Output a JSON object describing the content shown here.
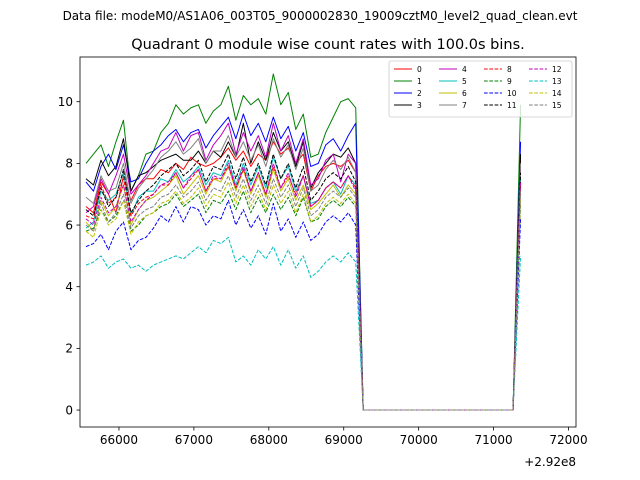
{
  "suptitle": "Data file: modeM0/AS1A06_003T05_9000002830_19009cztM0_level2_quad_clean.evt",
  "chart_data": {
    "type": "line",
    "title": "Quadrant 0 module wise count rates with 100.0s bins.",
    "offset_label": "+2.92e8",
    "xlim": [
      65480,
      72100
    ],
    "ylim": [
      -0.55,
      11.45
    ],
    "x_ticks": [
      66000,
      67000,
      68000,
      69000,
      70000,
      71000,
      72000
    ],
    "y_ticks": [
      0,
      2,
      4,
      6,
      8,
      10
    ],
    "x_start": 65560,
    "bin_width": 100,
    "gti": [
      [
        65560,
        69160
      ],
      [
        71360,
        71860
      ]
    ],
    "tail_x": 71900,
    "gap_edges": [
      69260,
      71260
    ],
    "legend_ncol": 4,
    "legend_location": "upper right",
    "series": [
      {
        "name": "0",
        "color": "#ff0000",
        "dash": "solid",
        "values": [
          6.6,
          6.4,
          7.4,
          7.0,
          6.4,
          7.6,
          6.8,
          7.3,
          7.5,
          7.5,
          7.8,
          7.7,
          8.0,
          7.8,
          8.2,
          8.0,
          7.9,
          8.0,
          8.2,
          8.5,
          8.1,
          8.4,
          7.9,
          8.3,
          8.1,
          8.7,
          8.3,
          8.5,
          8.0,
          8.3,
          7.1,
          7.6,
          7.9,
          8.0,
          7.9,
          8.1,
          7.7,
          8.2
        ],
        "tail": 1.0
      },
      {
        "name": "1",
        "color": "#008000",
        "dash": "solid",
        "values": [
          8.0,
          8.3,
          8.6,
          7.9,
          8.7,
          9.4,
          7.1,
          7.6,
          8.3,
          8.4,
          9.0,
          9.3,
          9.9,
          9.6,
          9.8,
          9.9,
          9.3,
          9.7,
          9.9,
          10.5,
          9.4,
          10.2,
          9.9,
          10.1,
          9.6,
          10.9,
          9.9,
          10.3,
          9.1,
          9.6,
          8.2,
          8.3,
          9.0,
          9.5,
          10.0,
          10.1,
          9.8,
          9.9
        ],
        "tail": 0.8
      },
      {
        "name": "2",
        "color": "#0000ff",
        "dash": "solid",
        "values": [
          7.4,
          7.1,
          7.9,
          8.3,
          7.8,
          8.6,
          7.4,
          7.5,
          8.0,
          8.4,
          8.6,
          8.9,
          9.1,
          8.7,
          9.0,
          9.1,
          8.5,
          8.9,
          9.2,
          9.5,
          8.8,
          9.6,
          8.9,
          9.3,
          8.7,
          9.5,
          8.8,
          9.2,
          8.4,
          9.0,
          7.9,
          8.0,
          8.6,
          8.8,
          8.4,
          8.9,
          9.3,
          8.7
        ],
        "tail": 1.0
      },
      {
        "name": "3",
        "color": "#000000",
        "dash": "solid",
        "values": [
          7.5,
          7.3,
          8.1,
          7.6,
          7.9,
          8.8,
          7.1,
          7.6,
          7.7,
          7.9,
          8.1,
          8.2,
          8.3,
          8.1,
          8.1,
          8.4,
          8.0,
          8.4,
          8.2,
          8.7,
          8.2,
          9.3,
          8.0,
          8.7,
          8.1,
          9.0,
          8.4,
          8.7,
          7.9,
          8.7,
          7.2,
          7.7,
          8.0,
          8.3,
          8.2,
          8.5,
          8.0,
          8.3
        ],
        "tail": 0.9
      },
      {
        "name": "4",
        "color": "#bf00bf",
        "dash": "solid",
        "values": [
          6.4,
          6.6,
          7.5,
          7.0,
          7.6,
          8.3,
          7.0,
          7.3,
          7.6,
          8.0,
          8.4,
          8.5,
          9.0,
          8.4,
          8.9,
          9.0,
          8.1,
          8.6,
          8.9,
          9.3,
          8.3,
          9.0,
          8.4,
          8.9,
          8.2,
          9.3,
          8.4,
          8.9,
          8.0,
          8.8,
          7.3,
          7.5,
          8.1,
          8.3,
          7.4,
          8.3,
          8.0,
          7.9
        ],
        "tail": 0.9
      },
      {
        "name": "5",
        "color": "#00bfbf",
        "dash": "solid",
        "values": [
          5.9,
          6.1,
          7.1,
          6.8,
          7.0,
          7.7,
          6.3,
          6.9,
          7.1,
          7.1,
          7.5,
          7.4,
          7.8,
          7.4,
          7.6,
          7.9,
          7.3,
          7.7,
          7.6,
          8.1,
          7.3,
          8.0,
          7.3,
          7.9,
          7.2,
          8.2,
          7.5,
          7.9,
          7.1,
          7.6,
          6.7,
          6.8,
          7.2,
          7.4,
          7.0,
          7.6,
          7.3,
          7.5
        ],
        "tail": 0.9
      },
      {
        "name": "6",
        "color": "#bfbf00",
        "dash": "solid",
        "values": [
          6.1,
          5.8,
          6.8,
          6.3,
          6.6,
          7.3,
          6.0,
          6.5,
          6.8,
          6.9,
          7.1,
          7.3,
          7.6,
          7.0,
          7.3,
          7.6,
          7.0,
          7.5,
          7.4,
          7.9,
          7.1,
          7.8,
          7.0,
          7.6,
          6.9,
          7.8,
          7.1,
          7.5,
          6.8,
          7.3,
          6.5,
          6.7,
          7.0,
          7.3,
          6.9,
          7.3,
          7.0,
          7.2
        ],
        "tail": 0.9
      },
      {
        "name": "7",
        "color": "#808080",
        "dash": "solid",
        "values": [
          6.9,
          6.7,
          7.6,
          7.1,
          7.2,
          8.0,
          6.7,
          7.2,
          7.5,
          7.8,
          8.2,
          8.4,
          8.7,
          8.3,
          8.5,
          8.8,
          8.0,
          8.4,
          8.4,
          8.9,
          8.2,
          8.7,
          8.1,
          8.6,
          7.9,
          8.8,
          8.2,
          8.6,
          7.8,
          8.5,
          7.1,
          7.3,
          7.8,
          8.1,
          7.8,
          8.2,
          7.7,
          8.0
        ],
        "tail": 0.9
      },
      {
        "name": "8",
        "color": "#ff0000",
        "dash": "dashed",
        "values": [
          6.3,
          6.2,
          7.3,
          6.7,
          6.9,
          7.5,
          6.3,
          6.7,
          6.9,
          7.0,
          7.3,
          7.3,
          7.7,
          7.2,
          7.5,
          7.8,
          7.1,
          7.5,
          7.5,
          7.9,
          7.2,
          7.8,
          7.1,
          7.7,
          7.0,
          7.9,
          7.2,
          7.6,
          7.0,
          7.6,
          6.6,
          6.8,
          7.2,
          7.4,
          7.2,
          7.6,
          7.2,
          7.4
        ],
        "tail": 0.9
      },
      {
        "name": "9",
        "color": "#008000",
        "dash": "dashed",
        "values": [
          5.8,
          5.9,
          6.5,
          6.1,
          6.3,
          6.8,
          5.8,
          6.0,
          6.3,
          6.4,
          6.6,
          6.7,
          7.0,
          6.6,
          6.8,
          7.0,
          6.4,
          6.8,
          6.7,
          7.1,
          6.5,
          7.1,
          6.4,
          6.9,
          6.4,
          7.0,
          6.5,
          6.9,
          6.3,
          6.9,
          6.1,
          6.2,
          6.6,
          6.8,
          6.6,
          6.9,
          6.6,
          6.7
        ],
        "tail": 0.9
      },
      {
        "name": "10",
        "color": "#0000ff",
        "dash": "dashed",
        "values": [
          5.3,
          5.4,
          5.7,
          5.2,
          5.8,
          6.1,
          5.2,
          5.5,
          5.6,
          5.9,
          6.3,
          6.1,
          6.6,
          6.1,
          6.6,
          6.5,
          6.0,
          6.3,
          6.2,
          6.8,
          6.0,
          6.5,
          5.9,
          6.3,
          5.7,
          6.7,
          5.8,
          6.2,
          5.6,
          6.1,
          5.5,
          5.7,
          6.1,
          6.3,
          6.1,
          6.4,
          6.0,
          6.2
        ],
        "tail": 0.9
      },
      {
        "name": "11",
        "color": "#000000",
        "dash": "dashed",
        "values": [
          6.5,
          6.3,
          7.2,
          6.6,
          6.9,
          7.8,
          6.4,
          6.8,
          7.1,
          7.3,
          7.6,
          7.8,
          8.0,
          7.6,
          7.8,
          8.1,
          7.4,
          7.9,
          7.8,
          8.3,
          7.5,
          8.2,
          7.4,
          8.0,
          7.3,
          8.3,
          7.5,
          8.0,
          7.2,
          7.9,
          6.8,
          7.1,
          7.5,
          7.7,
          7.5,
          7.9,
          7.4,
          7.7
        ],
        "tail": 0.9
      },
      {
        "name": "12",
        "color": "#bf00bf",
        "dash": "dashed",
        "values": [
          6.2,
          6.0,
          6.9,
          6.4,
          6.6,
          7.3,
          6.1,
          6.5,
          6.8,
          7.0,
          7.3,
          7.4,
          7.7,
          7.2,
          7.6,
          7.8,
          7.1,
          7.6,
          7.5,
          8.0,
          7.2,
          7.9,
          7.1,
          7.7,
          7.0,
          8.0,
          7.2,
          7.7,
          6.9,
          7.6,
          6.6,
          6.8,
          7.2,
          7.4,
          7.2,
          7.6,
          7.1,
          7.4
        ],
        "tail": 0.9
      },
      {
        "name": "13",
        "color": "#00bfbf",
        "dash": "dashed",
        "values": [
          4.7,
          4.8,
          5.0,
          4.6,
          4.8,
          4.9,
          4.6,
          4.7,
          4.5,
          4.7,
          4.8,
          4.9,
          5.0,
          4.9,
          5.1,
          5.3,
          5.1,
          5.5,
          5.4,
          5.6,
          4.8,
          5.0,
          4.7,
          5.2,
          4.9,
          5.3,
          4.7,
          5.2,
          4.6,
          5.0,
          4.3,
          4.5,
          4.8,
          5.0,
          4.8,
          5.1,
          4.8,
          5.0
        ],
        "tail": 0.9
      },
      {
        "name": "14",
        "color": "#bfbf00",
        "dash": "dashed",
        "values": [
          5.8,
          5.6,
          6.5,
          6.0,
          6.2,
          6.8,
          5.7,
          6.1,
          6.3,
          6.4,
          6.7,
          6.8,
          7.1,
          6.7,
          6.9,
          7.2,
          6.6,
          7.0,
          6.9,
          7.4,
          6.7,
          7.3,
          6.6,
          7.1,
          6.5,
          7.3,
          6.7,
          7.1,
          6.4,
          7.0,
          6.1,
          6.3,
          6.7,
          6.9,
          6.7,
          7.0,
          6.7,
          6.9
        ],
        "tail": 0.9
      },
      {
        "name": "15",
        "color": "#808080",
        "dash": "dashed",
        "values": [
          6.0,
          5.8,
          6.7,
          6.1,
          6.4,
          7.0,
          5.9,
          6.3,
          6.5,
          6.6,
          6.9,
          7.0,
          7.3,
          6.9,
          7.1,
          7.4,
          6.8,
          7.2,
          7.1,
          7.6,
          6.9,
          7.5,
          6.8,
          7.3,
          6.7,
          7.5,
          6.9,
          7.3,
          6.6,
          7.2,
          6.3,
          6.5,
          6.9,
          7.1,
          6.9,
          7.2,
          6.9,
          7.1
        ],
        "tail": 0.9
      }
    ]
  }
}
